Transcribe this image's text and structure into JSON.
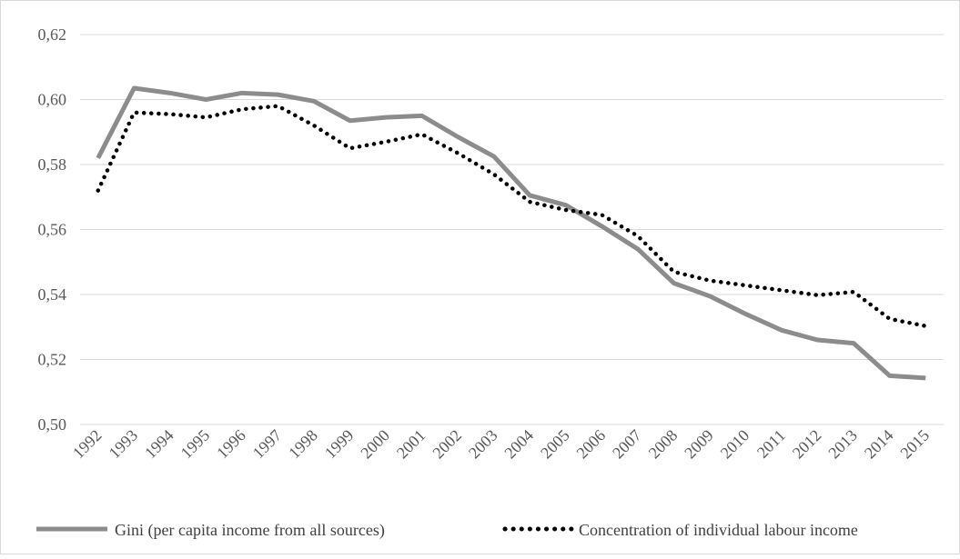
{
  "chart_data": {
    "type": "line",
    "categories": [
      "1992",
      "1993",
      "1994",
      "1995",
      "1996",
      "1997",
      "1998",
      "1999",
      "2000",
      "2001",
      "2002",
      "2003",
      "2004",
      "2005",
      "2006",
      "2007",
      "2008",
      "2009",
      "2010",
      "2011",
      "2012",
      "2013",
      "2014",
      "2015"
    ],
    "series": [
      {
        "name": "Gini (per capita income from all sources)",
        "style": "solid",
        "color": "#8c8c8c",
        "values": [
          0.582,
          0.6035,
          0.602,
          0.6,
          0.602,
          0.6015,
          0.5995,
          0.5935,
          0.5945,
          0.595,
          0.5885,
          0.5825,
          0.5705,
          0.5675,
          0.561,
          0.554,
          0.5435,
          0.5395,
          0.534,
          0.529,
          0.526,
          0.525,
          0.515,
          0.5143
        ]
      },
      {
        "name": "Concentration of individual labour income",
        "style": "dotted",
        "color": "#000000",
        "values": [
          0.572,
          0.596,
          0.5955,
          0.5945,
          0.597,
          0.598,
          0.592,
          0.585,
          0.587,
          0.5893,
          0.5835,
          0.577,
          0.5685,
          0.566,
          0.5645,
          0.558,
          0.547,
          0.5443,
          0.5428,
          0.5413,
          0.5398,
          0.5408,
          0.5325,
          0.5303
        ]
      }
    ],
    "y_ticks": [
      "0,50",
      "0,52",
      "0,54",
      "0,56",
      "0,58",
      "0,60",
      "0,62"
    ],
    "ylim": [
      0.5,
      0.62
    ],
    "grid": true,
    "legend_position": "bottom"
  }
}
